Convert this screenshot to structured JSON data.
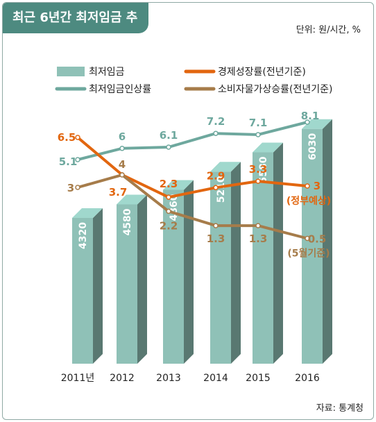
{
  "header": {
    "title": "최근 6년간 최저임금 추이",
    "unit": "단위: 원/시간, %",
    "source": "자료: 통계청"
  },
  "colors": {
    "banner": "#4d8a80",
    "wage_bar": "#8fc1b7",
    "wage_growth": "#6ea89e",
    "gdp_growth": "#e2660f",
    "cpi": "#a67c4a"
  },
  "chart_data": {
    "type": "bar",
    "categories": [
      "2011년",
      "2012",
      "2013",
      "2014",
      "2015",
      "2016"
    ],
    "series": [
      {
        "name": "최저임금",
        "type": "bar",
        "values": [
          4320,
          4580,
          4860,
          5210,
          5580,
          6030
        ]
      },
      {
        "name": "최저임금인상률",
        "type": "line",
        "values": [
          5.1,
          6,
          6.1,
          7.2,
          7.1,
          8.1
        ]
      },
      {
        "name": "경제성장률(전년기준)",
        "type": "line",
        "values": [
          6.5,
          3.7,
          2.3,
          2.9,
          3.3,
          3
        ]
      },
      {
        "name": "소비자물가상승률(전년기준)",
        "type": "line",
        "values": [
          3,
          4,
          2.2,
          1.3,
          1.3,
          0.5
        ]
      }
    ],
    "annotations": [
      {
        "series": "경제성장률(전년기준)",
        "category": "2016",
        "text": "(정부예상)"
      },
      {
        "series": "소비자물가상승률(전년기준)",
        "category": "2016",
        "text": "(5월기준)"
      }
    ],
    "legend_position": "top",
    "grid": false
  }
}
